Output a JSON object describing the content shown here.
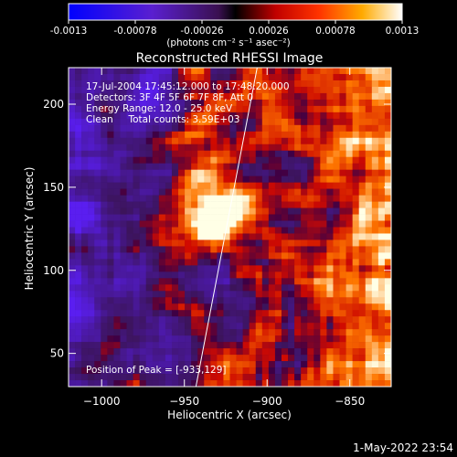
{
  "colorbar": {
    "tick_labels": [
      "-0.0013",
      "-0.00078",
      "-0.00026",
      "0.00026",
      "0.00078",
      "0.0013"
    ],
    "min": -0.0013,
    "max": 0.0013,
    "unit_label": "(photons cm⁻² s⁻¹ asec⁻²)"
  },
  "chart_data": {
    "type": "heatmap",
    "title": "Reconstructed RHESSI Image",
    "xlabel": "Heliocentric X (arcsec)",
    "ylabel": "Heliocentric Y (arcsec)",
    "xlim": [
      -1020,
      -825
    ],
    "ylim": [
      30,
      222
    ],
    "x_ticks": [
      -1000,
      -950,
      -900,
      -850
    ],
    "y_ticks": [
      50,
      100,
      150,
      200
    ],
    "x_tick_labels": [
      "−1000",
      "−950",
      "−900",
      "−850"
    ],
    "y_tick_labels": [
      "50",
      "100",
      "150",
      "200"
    ],
    "peak": {
      "x": -933,
      "y": 129
    },
    "limb_line": [
      [
        -943,
        30
      ],
      [
        -906,
        222
      ]
    ],
    "info_lines": [
      "17-Jul-2004 17:45:12.000 to 17:48:20.000",
      "Detectors: 3F 4F 5F 6F 7F 8F, Att 0",
      "Energy Range: 12.0 - 25.0 keV",
      "Clean     Total counts: 3.59E+03"
    ],
    "peak_label": "Position of Peak = [-933,129]"
  },
  "footer": {
    "timestamp": "1-May-2022 23:54"
  }
}
